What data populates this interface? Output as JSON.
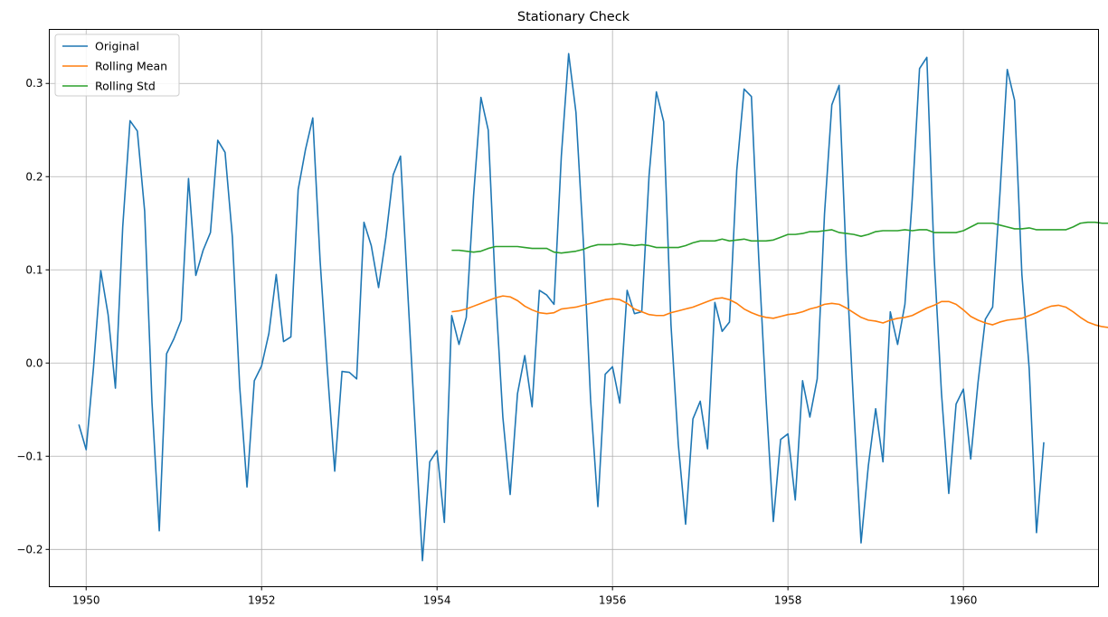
{
  "chart_data": {
    "type": "line",
    "title": "Stationary Check",
    "xlabel": "",
    "ylabel": "",
    "xlim": [
      1949.58,
      1961.54
    ],
    "ylim": [
      -0.24,
      0.358
    ],
    "grid": true,
    "legend_position": "top-left",
    "x_ticks": [
      1950,
      1952,
      1954,
      1956,
      1958,
      1960
    ],
    "y_ticks": [
      -0.2,
      -0.1,
      0.0,
      0.1,
      0.2,
      0.3
    ],
    "x_tick_labels": [
      "1950",
      "1952",
      "1954",
      "1956",
      "1958",
      "1960"
    ],
    "y_tick_labels": [
      "−0.2",
      "−0.1",
      "0.0",
      "0.1",
      "0.2",
      "0.3"
    ],
    "series": [
      {
        "name": "Original",
        "color": "#1f77b4",
        "x_start": 1949.917,
        "x_step": 0.08333,
        "values": [
          -0.066,
          -0.093,
          -0.005,
          0.099,
          0.052,
          -0.027,
          0.146,
          0.26,
          0.249,
          0.163,
          -0.042,
          -0.18,
          0.01,
          0.026,
          0.046,
          0.198,
          0.094,
          0.121,
          0.14,
          0.239,
          0.226,
          0.135,
          -0.025,
          -0.133,
          -0.019,
          -0.003,
          0.032,
          0.095,
          0.023,
          0.028,
          0.186,
          0.229,
          0.263,
          0.11,
          -0.008,
          -0.116,
          -0.009,
          -0.01,
          -0.017,
          0.151,
          0.126,
          0.081,
          0.135,
          0.202,
          0.222,
          0.075,
          -0.069,
          -0.212,
          -0.106,
          -0.094,
          -0.171,
          0.051,
          0.02,
          0.049,
          0.18,
          0.285,
          0.25,
          0.076,
          -0.058,
          -0.141,
          -0.033,
          0.008,
          -0.047,
          0.078,
          0.073,
          0.063,
          0.222,
          0.332,
          0.269,
          0.132,
          -0.039,
          -0.154,
          -0.012,
          -0.004,
          -0.043,
          0.078,
          0.053,
          0.055,
          0.201,
          0.291,
          0.259,
          0.041,
          -0.087,
          -0.173,
          -0.06,
          -0.041,
          -0.092,
          0.065,
          0.034,
          0.044,
          0.207,
          0.294,
          0.286,
          0.113,
          -0.038,
          -0.17,
          -0.082,
          -0.076,
          -0.147,
          -0.019,
          -0.058,
          -0.017,
          0.16,
          0.277,
          0.298,
          0.105,
          -0.048,
          -0.193,
          -0.11,
          -0.049,
          -0.106,
          0.055,
          0.02,
          0.063,
          0.176,
          0.316,
          0.328,
          0.113,
          -0.032,
          -0.14,
          -0.044,
          -0.028,
          -0.103,
          -0.021,
          0.047,
          0.06,
          0.182,
          0.315,
          0.282,
          0.095,
          -0.006,
          -0.182,
          -0.085
        ]
      },
      {
        "name": "Rolling Mean",
        "color": "#ff7f0e",
        "x_start": 1954.167,
        "x_step": 0.08333,
        "values": [
          0.055,
          0.056,
          0.058,
          0.061,
          0.064,
          0.067,
          0.07,
          0.072,
          0.071,
          0.067,
          0.061,
          0.057,
          0.054,
          0.053,
          0.054,
          0.058,
          0.059,
          0.06,
          0.062,
          0.064,
          0.066,
          0.068,
          0.069,
          0.068,
          0.064,
          0.058,
          0.055,
          0.052,
          0.051,
          0.051,
          0.054,
          0.056,
          0.058,
          0.06,
          0.063,
          0.066,
          0.069,
          0.07,
          0.068,
          0.064,
          0.058,
          0.054,
          0.051,
          0.049,
          0.048,
          0.05,
          0.052,
          0.053,
          0.055,
          0.058,
          0.06,
          0.063,
          0.064,
          0.063,
          0.059,
          0.054,
          0.049,
          0.046,
          0.045,
          0.043,
          0.046,
          0.048,
          0.049,
          0.051,
          0.055,
          0.059,
          0.062,
          0.066,
          0.066,
          0.063,
          0.057,
          0.05,
          0.046,
          0.043,
          0.041,
          0.044,
          0.046,
          0.047,
          0.048,
          0.051,
          0.054,
          0.058,
          0.061,
          0.062,
          0.06,
          0.055,
          0.049,
          0.044,
          0.041,
          0.039,
          0.038,
          0.04,
          0.041,
          0.042,
          0.045,
          0.048,
          0.052,
          0.055,
          0.056,
          0.055,
          0.051,
          0.045,
          0.04,
          0.036
        ]
      },
      {
        "name": "Rolling Std",
        "color": "#2ca02c",
        "x_start": 1954.167,
        "x_step": 0.08333,
        "values": [
          0.121,
          0.121,
          0.12,
          0.119,
          0.12,
          0.123,
          0.125,
          0.125,
          0.125,
          0.125,
          0.124,
          0.123,
          0.123,
          0.123,
          0.119,
          0.118,
          0.119,
          0.12,
          0.122,
          0.125,
          0.127,
          0.127,
          0.127,
          0.128,
          0.127,
          0.126,
          0.127,
          0.126,
          0.124,
          0.124,
          0.124,
          0.124,
          0.126,
          0.129,
          0.131,
          0.131,
          0.131,
          0.133,
          0.131,
          0.132,
          0.133,
          0.131,
          0.131,
          0.131,
          0.132,
          0.135,
          0.138,
          0.138,
          0.139,
          0.141,
          0.141,
          0.142,
          0.143,
          0.14,
          0.139,
          0.138,
          0.136,
          0.138,
          0.141,
          0.142,
          0.142,
          0.142,
          0.143,
          0.142,
          0.143,
          0.143,
          0.14,
          0.14,
          0.14,
          0.14,
          0.142,
          0.146,
          0.15,
          0.15,
          0.15,
          0.148,
          0.146,
          0.144,
          0.144,
          0.145,
          0.143,
          0.143,
          0.143,
          0.143,
          0.143,
          0.146,
          0.15,
          0.151,
          0.151,
          0.15,
          0.15,
          0.149,
          0.148
        ]
      }
    ]
  }
}
